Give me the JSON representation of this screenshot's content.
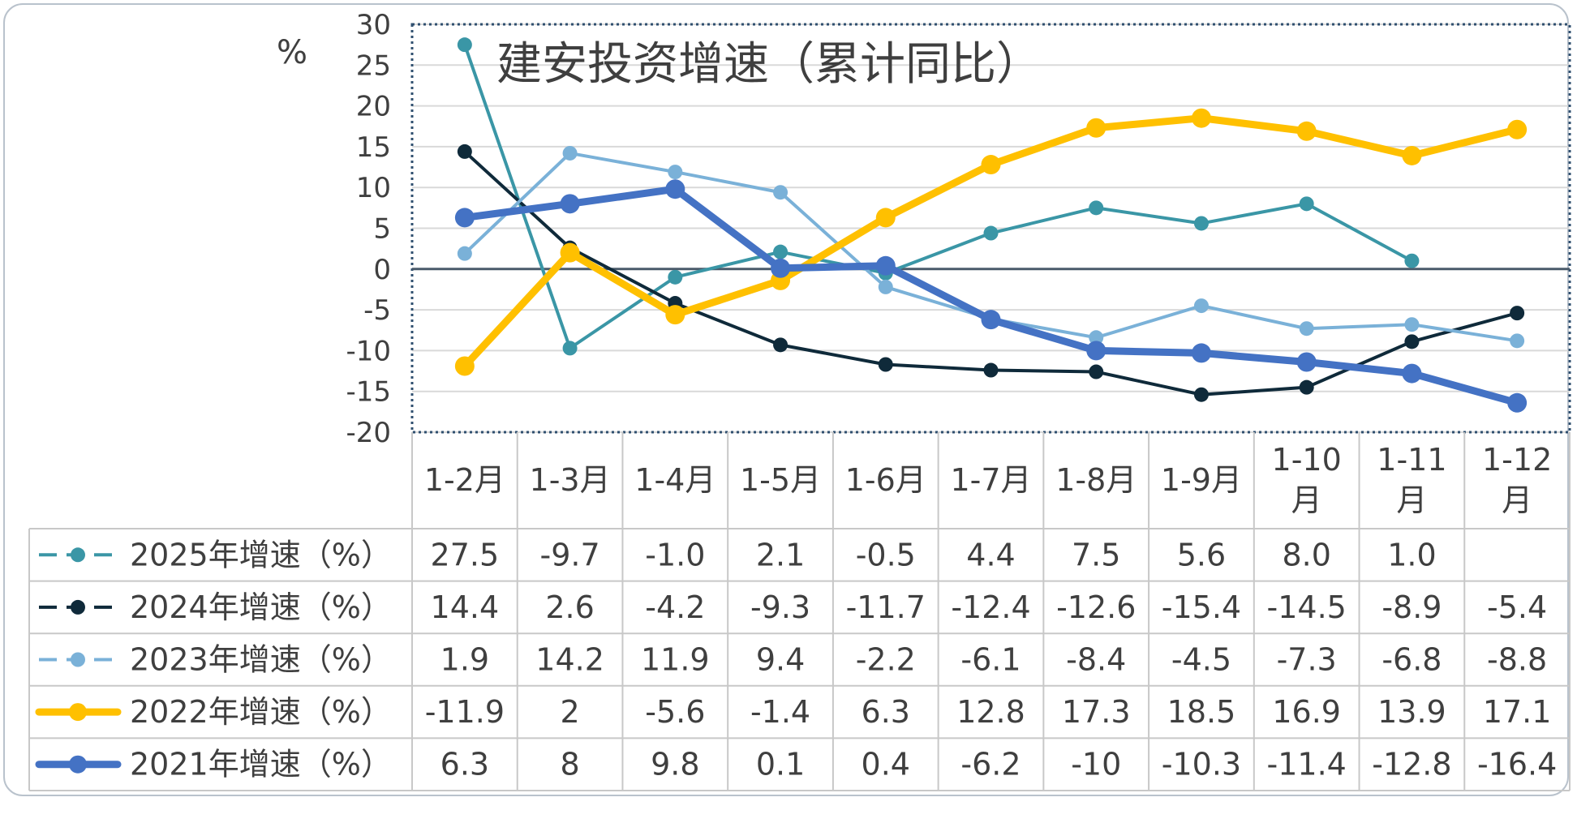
{
  "chart_data": {
    "type": "line",
    "title": "建安投资增速（累计同比）",
    "ylabel": "%",
    "ylim": [
      -20,
      30
    ],
    "yticks": [
      30,
      25,
      20,
      15,
      10,
      5,
      0,
      -5,
      -10,
      -15,
      -20
    ],
    "categories": [
      "1-2月",
      "1-3月",
      "1-4月",
      "1-5月",
      "1-6月",
      "1-7月",
      "1-8月",
      "1-9月",
      "1-10月",
      "1-11月",
      "1-12月"
    ],
    "series": [
      {
        "name": "2025年增速（%）",
        "color": "#3a96a6",
        "style": "thin",
        "values": [
          27.5,
          -9.7,
          -1.0,
          2.1,
          -0.5,
          4.4,
          7.5,
          5.6,
          8.0,
          1.0,
          null
        ],
        "labels": [
          "27.5",
          "-9.7",
          "-1.0",
          "2.1",
          "-0.5",
          "4.4",
          "7.5",
          "5.6",
          "8.0",
          "1.0",
          ""
        ]
      },
      {
        "name": "2024年增速（%）",
        "color": "#0f2a3a",
        "style": "thin",
        "values": [
          14.4,
          2.6,
          -4.2,
          -9.3,
          -11.7,
          -12.4,
          -12.6,
          -15.4,
          -14.5,
          -8.9,
          -5.4
        ],
        "labels": [
          "14.4",
          "2.6",
          "-4.2",
          "-9.3",
          "-11.7",
          "-12.4",
          "-12.6",
          "-15.4",
          "-14.5",
          "-8.9",
          "-5.4"
        ]
      },
      {
        "name": "2023年增速（%）",
        "color": "#7ab1d8",
        "style": "thin",
        "values": [
          1.9,
          14.2,
          11.9,
          9.4,
          -2.2,
          -6.1,
          -8.4,
          -4.5,
          -7.3,
          -6.8,
          -8.8
        ],
        "labels": [
          "1.9",
          "14.2",
          "11.9",
          "9.4",
          "-2.2",
          "-6.1",
          "-8.4",
          "-4.5",
          "-7.3",
          "-6.8",
          "-8.8"
        ]
      },
      {
        "name": "2022年增速（%）",
        "color": "#ffc000",
        "style": "thick",
        "values": [
          -11.9,
          2,
          -5.6,
          -1.4,
          6.3,
          12.8,
          17.3,
          18.5,
          16.9,
          13.9,
          17.1
        ],
        "labels": [
          "-11.9",
          "2",
          "-5.6",
          "-1.4",
          "6.3",
          "12.8",
          "17.3",
          "18.5",
          "16.9",
          "13.9",
          "17.1"
        ]
      },
      {
        "name": "2021年增速（%）",
        "color": "#4472c4",
        "style": "thick",
        "values": [
          6.3,
          8,
          9.8,
          0.1,
          0.4,
          -6.2,
          -10,
          -10.3,
          -11.4,
          -12.8,
          -16.4
        ],
        "labels": [
          "6.3",
          "8",
          "9.8",
          "0.1",
          "0.4",
          "-6.2",
          "-10",
          "-10.3",
          "-11.4",
          "-12.8",
          "-16.4"
        ]
      }
    ],
    "grid": "horizontal",
    "legend": "data-table"
  }
}
